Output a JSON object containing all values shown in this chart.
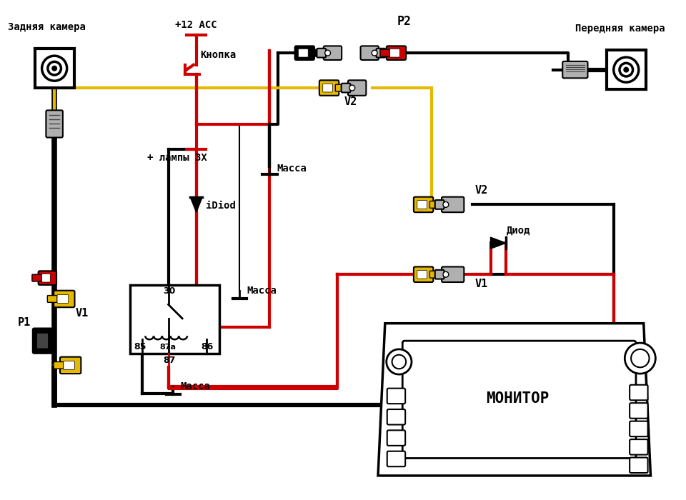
{
  "bg_color": "#ffffff",
  "labels": {
    "rear_camera": "Задняя камера",
    "front_camera": "Передняя камера",
    "button": "Кнопка",
    "plus12acc": "+12 ACC",
    "lamp_plus": "+ лампы 3Х",
    "idiod": "iDiod",
    "massa1": "Масса",
    "massa2": "Масса",
    "massa3": "Масса",
    "diod": "Диод",
    "monitor": "МОНИТОР",
    "P1": "P1",
    "P2": "P2",
    "V1_left": "V1",
    "V1_right": "V1",
    "V2_top": "V2",
    "V2_right": "V2",
    "relay_30": "30",
    "relay_85": "85",
    "relay_86": "86",
    "relay_87": "87",
    "relay_87a": "87a"
  },
  "colors": {
    "red": "#cc0000",
    "black": "#1a1a1a",
    "yellow": "#e6b800",
    "white": "#ffffff",
    "light_gray": "#b0b0b0",
    "mid_gray": "#888888",
    "dark_gray": "#444444"
  },
  "lw": {
    "wire": 3.0,
    "thick": 4.5,
    "thin": 1.5,
    "border": 2.0
  }
}
